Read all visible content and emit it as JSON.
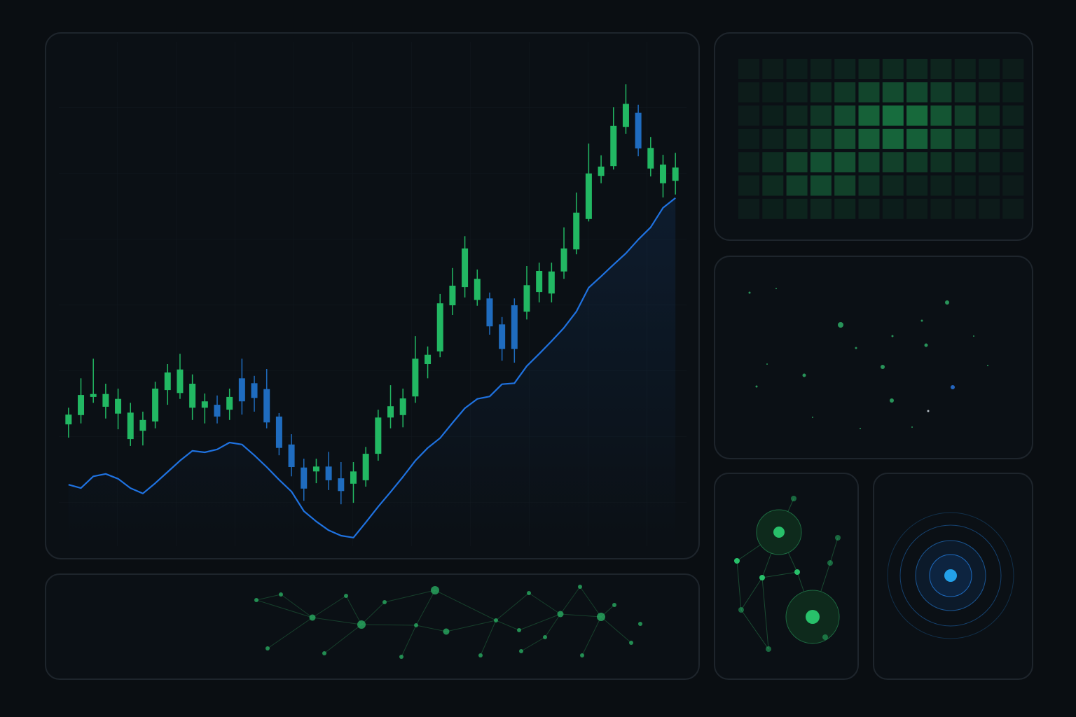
{
  "chart_data": {
    "type": "candlestick",
    "categories": [
      null,
      null,
      null,
      null,
      null,
      null,
      null,
      null,
      null,
      null,
      null,
      null,
      null,
      null,
      null,
      null,
      null,
      null,
      null,
      null,
      null,
      null,
      null,
      null,
      null,
      null,
      null,
      null,
      null,
      null,
      null,
      null,
      null,
      null,
      null,
      null,
      null,
      null,
      null,
      null,
      null,
      null,
      null,
      null,
      null,
      null,
      null,
      null,
      null,
      null
    ],
    "open": [
      27.7,
      29.6,
      33.3,
      31.3,
      29.9,
      24.7,
      26.4,
      28.3,
      34.7,
      34.1,
      31.1,
      31.1,
      31.7,
      30.7,
      37.1,
      36.1,
      34.9,
      29.3,
      23.6,
      18.9,
      18.1,
      19.1,
      16.7,
      15.6,
      16.3,
      21.7,
      29.1,
      29.6,
      33.4,
      40.0,
      42.6,
      52.0,
      55.7,
      53.1,
      53.4,
      48.1,
      52.0,
      50.7,
      54.7,
      54.4,
      58.9,
      63.4,
      69.6,
      78.4,
      80.4,
      88.4,
      91.3,
      79.9,
      76.9,
      77.4
    ],
    "close": [
      29.7,
      33.7,
      33.9,
      33.9,
      32.9,
      30.1,
      28.6,
      35.0,
      38.3,
      38.9,
      36.0,
      32.4,
      29.3,
      33.3,
      32.4,
      33.1,
      28.1,
      22.9,
      19.0,
      14.6,
      19.1,
      16.3,
      14.1,
      18.1,
      21.7,
      29.1,
      31.4,
      33.0,
      41.1,
      41.9,
      52.4,
      56.0,
      63.6,
      57.4,
      47.7,
      43.1,
      43.1,
      56.1,
      59.0,
      58.9,
      63.6,
      70.9,
      78.9,
      80.3,
      88.6,
      93.1,
      84.0,
      84.1,
      80.7,
      80.1
    ],
    "high": [
      31.1,
      37.1,
      41.1,
      36.0,
      35.0,
      32.1,
      30.3,
      36.4,
      40.0,
      42.1,
      37.9,
      34.0,
      33.6,
      35.0,
      41.1,
      37.6,
      39.0,
      30.0,
      25.7,
      20.7,
      20.7,
      22.1,
      20.0,
      20.0,
      23.1,
      30.7,
      35.7,
      35.0,
      45.7,
      43.6,
      54.3,
      59.6,
      66.1,
      59.3,
      54.6,
      49.6,
      53.4,
      60.0,
      60.7,
      60.7,
      67.9,
      75.0,
      85.0,
      82.6,
      92.4,
      97.1,
      92.9,
      86.3,
      82.7,
      83.1
    ],
    "low": [
      25.0,
      27.9,
      32.1,
      28.9,
      26.7,
      23.3,
      23.4,
      26.9,
      31.7,
      32.9,
      28.6,
      27.9,
      27.9,
      28.6,
      29.7,
      30.3,
      26.9,
      21.4,
      17.1,
      12.1,
      15.7,
      14.3,
      11.4,
      11.7,
      15.0,
      20.3,
      26.9,
      27.1,
      32.1,
      37.1,
      41.4,
      50.0,
      53.6,
      51.9,
      46.0,
      40.7,
      40.3,
      49.1,
      52.6,
      52.6,
      57.4,
      62.4,
      69.1,
      76.9,
      79.7,
      87.0,
      82.4,
      78.3,
      74.0,
      74.6
    ],
    "up_color": "#22b863",
    "down_color": "#1f6cbf",
    "series": [
      {
        "color": "#1f72e0",
        "values": [
          15.4,
          14.7,
          17.1,
          17.6,
          16.6,
          14.7,
          13.6,
          15.7,
          18.0,
          20.3,
          22.3,
          22.0,
          22.6,
          24.0,
          23.6,
          21.4,
          19.0,
          16.4,
          14.0,
          10.0,
          7.9,
          6.1,
          5.0,
          4.6,
          7.7,
          10.9,
          13.9,
          17.0,
          20.3,
          22.9,
          24.9,
          28.0,
          31.0,
          32.9,
          33.4,
          35.9,
          36.1,
          39.6,
          42.1,
          44.7,
          47.4,
          50.7,
          55.6,
          57.9,
          60.3,
          62.6,
          65.4,
          67.9,
          71.9,
          73.9
        ]
      }
    ],
    "ylim": [
      0,
      100
    ]
  }
}
